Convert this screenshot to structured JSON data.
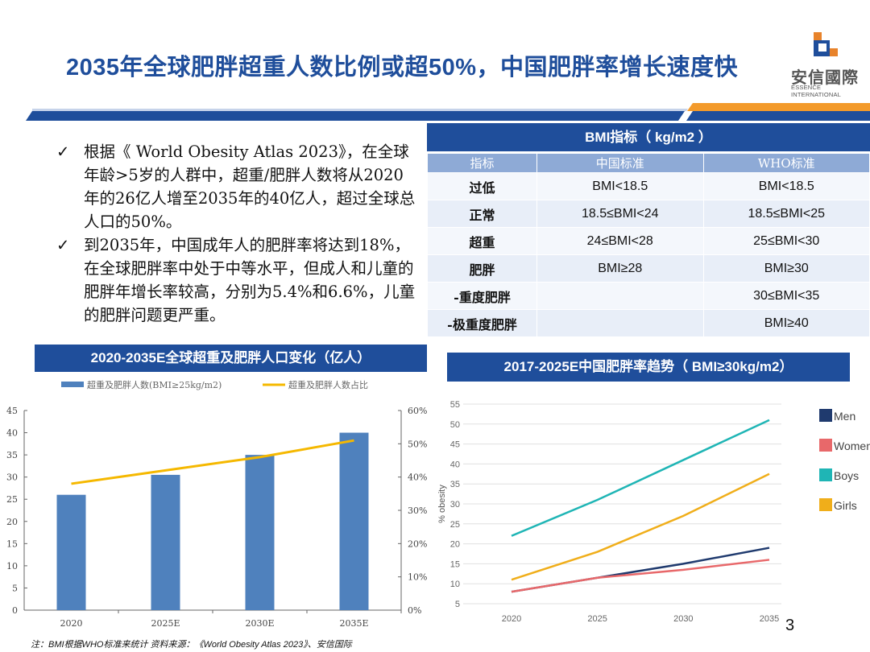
{
  "header": {
    "title": "2035年全球肥胖超重人数比例或超50%，中国肥胖率增长速度快",
    "logo_cn": "安信國際",
    "logo_en": "ESSENCE INTERNATIONAL"
  },
  "bullets": [
    "根据《 World Obesity Atlas 2023》，在全球年龄>5岁的人群中，超重/肥胖人数将从2020年的26亿人增至2035年的40亿人，超过全球总人口的50%。",
    "到2035年，中国成年人的肥胖率将达到18%，在全球肥胖率中处于中等水平，但成人和儿童的肥胖年增长率较高，分别为5.4%和6.6%，儿童的肥胖问题更严重。"
  ],
  "bmi_table": {
    "title": "BMI指标（ kg/m2 ）",
    "headers": [
      "指标",
      "中国标准",
      "WHO标准"
    ],
    "rows": [
      [
        "过低",
        "BMI<18.5",
        "BMI<18.5"
      ],
      [
        "正常",
        "18.5≤BMI<24",
        "18.5≤BMI<25"
      ],
      [
        "超重",
        "24≤BMI<28",
        "25≤BMI<30"
      ],
      [
        "肥胖",
        "BMI≥28",
        "BMI≥30"
      ],
      [
        "-重度肥胖",
        "",
        "30≤BMI<35"
      ],
      [
        "-极重度肥胖",
        "",
        "BMI≥40"
      ]
    ]
  },
  "chart_data": [
    {
      "type": "bar",
      "title": "2020-2035E全球超重及肥胖人口变化（亿人）",
      "categories": [
        "2020",
        "2025E",
        "2030E",
        "2035E"
      ],
      "series": [
        {
          "name": "超重及肥胖人数(BMI≥25kg/m2)",
          "kind": "bar",
          "axis": "left",
          "values": [
            26,
            30.5,
            35,
            40
          ],
          "color": "#4f81bd"
        },
        {
          "name": "超重及肥胖人数占比",
          "kind": "line",
          "axis": "right",
          "values": [
            38,
            42,
            46,
            51
          ],
          "color": "#f5b800"
        }
      ],
      "ylim": [
        0,
        45
      ],
      "yticks": [
        "0",
        "5",
        "10",
        "15",
        "20",
        "25",
        "30",
        "35",
        "40",
        "45"
      ],
      "y2lim": [
        0,
        60
      ],
      "y2ticks": [
        "0%",
        "10%",
        "20%",
        "30%",
        "40%",
        "50%",
        "60%"
      ],
      "legend": "top"
    },
    {
      "type": "line",
      "title": "2017-2025E中国肥胖率趋势（ BMI≥30kg/m2）",
      "ylabel": "% obesity",
      "x": [
        2020,
        2025,
        2030,
        2035
      ],
      "series": [
        {
          "name": "Men",
          "values": [
            8,
            11.5,
            15,
            19
          ],
          "color": "#1f3a6e"
        },
        {
          "name": "Women",
          "values": [
            8,
            11.5,
            13.5,
            16
          ],
          "color": "#e8686a"
        },
        {
          "name": "Boys",
          "values": [
            22,
            31,
            41,
            51
          ],
          "color": "#1fb5b5"
        },
        {
          "name": "Girls",
          "values": [
            11,
            18,
            27,
            37.5
          ],
          "color": "#f0ae1a"
        }
      ],
      "ylim": [
        5,
        55
      ],
      "yticks": [
        "5",
        "10",
        "15",
        "20",
        "25",
        "30",
        "35",
        "40",
        "45",
        "50",
        "55"
      ],
      "xticks": [
        "2020",
        "2025",
        "2030",
        "2035"
      ],
      "grid": true,
      "legend": "right"
    }
  ],
  "footnote": "注：BMI根据WHO标准来统计 资料来源：《World Obesity Atlas 2023》、安信国际",
  "page_number": "3"
}
